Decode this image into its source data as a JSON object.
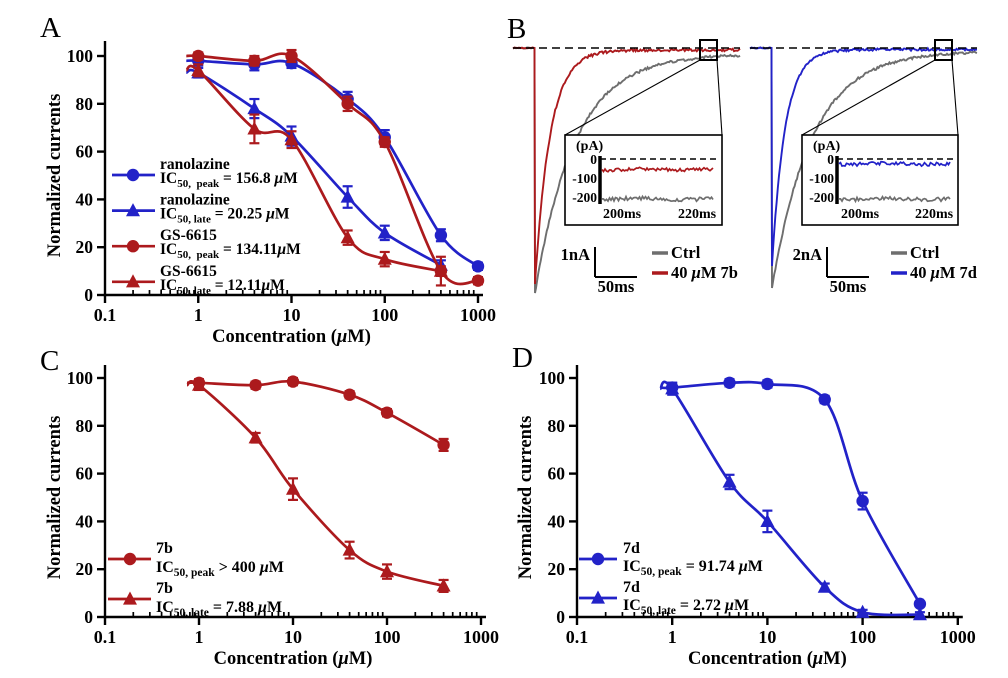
{
  "page": {
    "background": "#ffffff"
  },
  "colors": {
    "blue": "#2222C8",
    "red": "#AC1A1D",
    "gray": "#6E6E6E",
    "black": "#000000"
  },
  "panel_labels": [
    "A",
    "B",
    "C",
    "D"
  ],
  "chart_data": [
    {
      "panel": "A",
      "type": "scatter-line",
      "xscale": "log",
      "xlabel": "Concentration (μM)",
      "ylabel": "Normalized currents",
      "xlim": [
        0.1,
        1000
      ],
      "ylim": [
        0,
        100
      ],
      "xticks": [
        "0.1",
        "1",
        "10",
        "100",
        "1000"
      ],
      "yticks": [
        0,
        20,
        40,
        60,
        80,
        100
      ],
      "legend_position": "lower-left",
      "series": [
        {
          "name": "ranolazine",
          "marker": "circle",
          "color": "blue",
          "ic50_sub": "50,  peak",
          "ic50_value": " = 156.8 μM",
          "x": [
            1,
            4,
            10,
            40,
            100,
            400,
            1000
          ],
          "y": [
            98,
            96.5,
            97,
            82,
            66,
            25,
            12
          ],
          "err": [
            2,
            2.5,
            2,
            3,
            3,
            2.5,
            1.5
          ]
        },
        {
          "name": "ranolazine",
          "marker": "triangle",
          "color": "blue",
          "ic50_sub": "50, late",
          "ic50_value": " = 20.25 μM",
          "x": [
            1,
            4,
            10,
            40,
            100,
            400
          ],
          "y": [
            93,
            78,
            66.5,
            41,
            26,
            12.5
          ],
          "err": [
            2,
            4,
            4,
            4.5,
            3,
            2
          ]
        },
        {
          "name": "GS-6615",
          "marker": "circle",
          "color": "red",
          "ic50_sub": "50,  peak",
          "ic50_value": " = 134.11μM",
          "x": [
            1,
            4,
            10,
            40,
            100,
            400,
            1000
          ],
          "y": [
            100,
            98,
            100,
            80,
            64,
            10,
            6
          ],
          "err": [
            1.5,
            2,
            2.5,
            3,
            2,
            6,
            1.5
          ]
        },
        {
          "name": "GS-6615",
          "marker": "triangle",
          "color": "red",
          "ic50_sub": "50, late",
          "ic50_value": " = 12.11μM",
          "x": [
            1,
            4,
            10,
            40,
            100,
            400
          ],
          "y": [
            94,
            69.5,
            65,
            24,
            15,
            10
          ],
          "err": [
            2.5,
            6,
            3.5,
            3,
            3,
            2
          ]
        }
      ]
    },
    {
      "panel": "B",
      "type": "current-traces",
      "groups": [
        {
          "ctrl_label": "Ctrl",
          "drug_label": "40 μM 7b",
          "drug_color": "red",
          "ctrl_color": "gray",
          "vscale_label": "1nA",
          "hscale_label": "50ms",
          "inset": {
            "ylabel": "(pA)",
            "yticks": [
              "0",
              "-100",
              "-200"
            ],
            "xlabels": [
              "200ms",
              "220ms"
            ],
            "drug_level_pA": -55,
            "ctrl_level_pA": -210
          }
        },
        {
          "ctrl_label": "Ctrl",
          "drug_label": "40 μM 7d",
          "drug_color": "blue",
          "ctrl_color": "gray",
          "vscale_label": "2nA",
          "hscale_label": "50ms",
          "inset": {
            "ylabel": "(pA)",
            "yticks": [
              "0",
              "-100",
              "-200"
            ],
            "xlabels": [
              "200ms",
              "220ms"
            ],
            "drug_level_pA": -25,
            "ctrl_level_pA": -210
          }
        }
      ]
    },
    {
      "panel": "C",
      "type": "scatter-line",
      "xscale": "log",
      "xlabel": "Concentration (μM)",
      "ylabel": "Normalized currents",
      "xlim": [
        0.1,
        1000
      ],
      "ylim": [
        0,
        100
      ],
      "xticks": [
        "0.1",
        "1",
        "10",
        "100",
        "1000"
      ],
      "yticks": [
        0,
        20,
        40,
        60,
        80,
        100
      ],
      "legend_position": "lower-left",
      "series": [
        {
          "name": "7b",
          "marker": "circle",
          "color": "red",
          "ic50_sub": "50, peak",
          "ic50_value": " > 400 μM",
          "x": [
            1,
            4,
            10,
            40,
            100,
            400
          ],
          "y": [
            98,
            97,
            98.5,
            93,
            85.5,
            72
          ],
          "err": [
            1.5,
            1.5,
            1.5,
            1.5,
            1.5,
            2.5
          ]
        },
        {
          "name": "7b",
          "marker": "triangle",
          "color": "red",
          "ic50_sub": "50, late",
          "ic50_value": " = 7.88 μM",
          "x": [
            1,
            4,
            10,
            40,
            100,
            400
          ],
          "y": [
            97,
            75,
            53.5,
            28,
            19,
            13
          ],
          "err": [
            2,
            2,
            4.5,
            3.5,
            3,
            2.5
          ]
        }
      ]
    },
    {
      "panel": "D",
      "type": "scatter-line",
      "xscale": "log",
      "xlabel": "Concentration (μM)",
      "ylabel": "Normalized currents",
      "xlim": [
        0.1,
        1000
      ],
      "ylim": [
        0,
        100
      ],
      "xticks": [
        "0.1",
        "1",
        "10",
        "100",
        "1000"
      ],
      "yticks": [
        0,
        20,
        40,
        60,
        80,
        100
      ],
      "legend_position": "lower-left",
      "series": [
        {
          "name": "7d",
          "marker": "circle",
          "color": "blue",
          "ic50_sub": "50, peak",
          "ic50_value": " = 91.74 μM",
          "x": [
            1,
            4,
            10,
            40,
            100,
            400
          ],
          "y": [
            96,
            98,
            97.5,
            91,
            48.5,
            5.5
          ],
          "err": [
            2,
            1.5,
            1.5,
            1.5,
            3.5,
            1
          ]
        },
        {
          "name": "7d",
          "marker": "triangle",
          "color": "blue",
          "ic50_sub": "50, late",
          "ic50_value": " = 2.72 μM",
          "x": [
            1,
            4,
            10,
            40,
            100,
            400
          ],
          "y": [
            95.5,
            56.5,
            40,
            12.5,
            2,
            1
          ],
          "err": [
            2.5,
            3,
            4.5,
            1.5,
            1,
            1
          ]
        }
      ]
    }
  ]
}
